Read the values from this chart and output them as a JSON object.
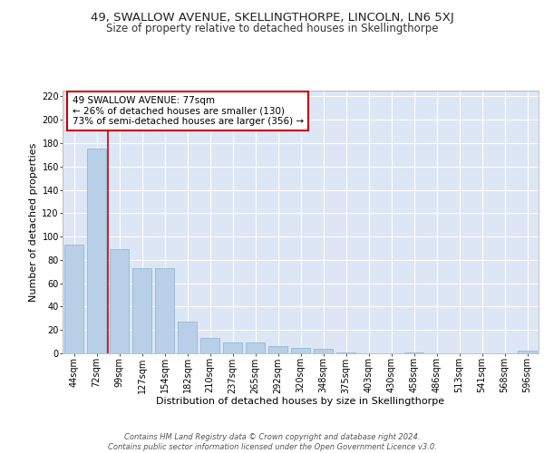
{
  "title": "49, SWALLOW AVENUE, SKELLINGTHORPE, LINCOLN, LN6 5XJ",
  "subtitle": "Size of property relative to detached houses in Skellingthorpe",
  "xlabel": "Distribution of detached houses by size in Skellingthorpe",
  "ylabel": "Number of detached properties",
  "categories": [
    "44sqm",
    "72sqm",
    "99sqm",
    "127sqm",
    "154sqm",
    "182sqm",
    "210sqm",
    "237sqm",
    "265sqm",
    "292sqm",
    "320sqm",
    "348sqm",
    "375sqm",
    "403sqm",
    "430sqm",
    "458sqm",
    "486sqm",
    "513sqm",
    "541sqm",
    "568sqm",
    "596sqm"
  ],
  "values": [
    93,
    175,
    89,
    73,
    73,
    27,
    13,
    9,
    9,
    6,
    5,
    4,
    1,
    0,
    0,
    1,
    0,
    0,
    0,
    0,
    2
  ],
  "bar_color": "#b8cfe8",
  "bar_edge_color": "#8aafd0",
  "property_line_x": 1.5,
  "property_line_color": "#cc0000",
  "annotation_text": "49 SWALLOW AVENUE: 77sqm\n← 26% of detached houses are smaller (130)\n73% of semi-detached houses are larger (356) →",
  "annotation_box_color": "#ffffff",
  "annotation_box_edge_color": "#cc0000",
  "ylim": [
    0,
    225
  ],
  "yticks": [
    0,
    20,
    40,
    60,
    80,
    100,
    120,
    140,
    160,
    180,
    200,
    220
  ],
  "background_color": "#dce6f5",
  "footer_text": "Contains HM Land Registry data © Crown copyright and database right 2024.\nContains public sector information licensed under the Open Government Licence v3.0.",
  "title_fontsize": 9.5,
  "subtitle_fontsize": 8.5,
  "xlabel_fontsize": 8,
  "ylabel_fontsize": 8,
  "tick_fontsize": 7,
  "annotation_fontsize": 7.5,
  "footer_fontsize": 6
}
